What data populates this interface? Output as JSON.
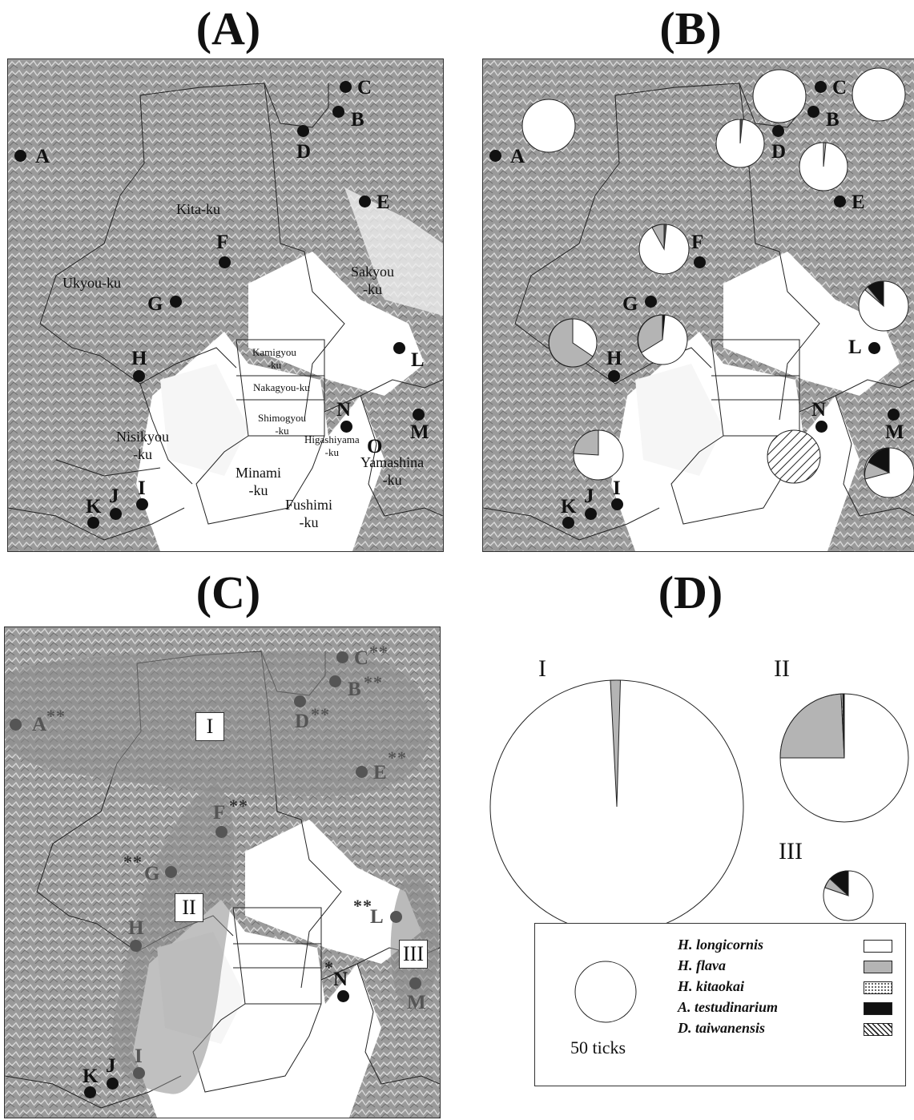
{
  "panels": {
    "a": "(A)",
    "b": "(B)",
    "c": "(C)",
    "d": "(D)"
  },
  "sites": [
    "A",
    "B",
    "C",
    "D",
    "E",
    "F",
    "G",
    "H",
    "I",
    "J",
    "K",
    "L",
    "M",
    "N",
    "O"
  ],
  "wards": {
    "kita": "Kita-ku",
    "ukyou": "Ukyou-ku",
    "sakyou_1": "Sakyou",
    "sakyou_2": "-ku",
    "kamigyou_1": "Kamigyou",
    "kamigyou_2": "-ku",
    "nakagyou": "Nakagyou-ku",
    "shimogyou_1": "Shimogyou",
    "shimogyou_2": "-ku",
    "higashiyama_1": "Higashiyama",
    "higashiyama_2": "-ku",
    "nisikyou_1": "Nisikyou",
    "nisikyou_2": "-ku",
    "minami_1": "Minami",
    "minami_2": "-ku",
    "fushimi_1": "Fushimi",
    "fushimi_2": "-ku",
    "yamashina_1": "Yamashina",
    "yamashina_2": "-ku"
  },
  "significance": {
    "double": "**",
    "single": "*"
  },
  "regions": {
    "r1": "I",
    "r2": "II",
    "r3": "III"
  },
  "colors": {
    "H_longicornis": "#ffffff",
    "H_flava": "#b4b4b4",
    "H_kitaokai": "dotted",
    "A_testudinarium": "#111111",
    "D_taiwanensis": "hatched",
    "region_shade": "#8c8c8c"
  },
  "legend": {
    "reference_label": "50 ticks",
    "species": [
      "H. longicornis",
      "H. flava",
      "H. kitaokai",
      "A. testudinarium",
      "D. taiwanensis"
    ]
  }
}
